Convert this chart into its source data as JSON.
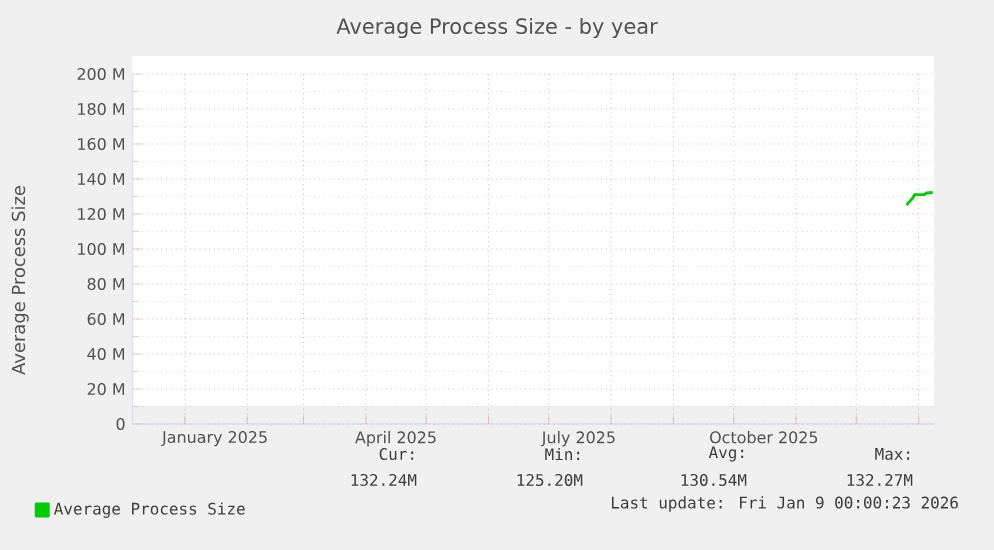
{
  "chart_data": {
    "type": "line",
    "title": "Average Process Size - by year",
    "ylabel": "Average Process Size",
    "x": [
      "2025-12-26",
      "2025-12-27",
      "2025-12-29",
      "2025-12-30",
      "2026-01-04",
      "2026-01-05",
      "2026-01-08"
    ],
    "series": [
      {
        "name": "Average Process Size",
        "color": "#00cc00",
        "values": [
          125.2,
          126.5,
          129,
          131,
          131.2,
          132,
          132.24
        ]
      }
    ],
    "xlim": [
      "2024-12-06",
      "2026-01-09"
    ],
    "xticks": [
      {
        "value": "2025-01-01",
        "label": null
      },
      {
        "value": "2025-01-16",
        "label": "January 2025"
      },
      {
        "value": "2025-02-01",
        "label": null
      },
      {
        "value": "2025-03-01",
        "label": null
      },
      {
        "value": "2025-04-01",
        "label": null
      },
      {
        "value": "2025-04-16",
        "label": "April 2025"
      },
      {
        "value": "2025-05-01",
        "label": null
      },
      {
        "value": "2025-06-01",
        "label": null
      },
      {
        "value": "2025-07-01",
        "label": null
      },
      {
        "value": "2025-07-16",
        "label": "July 2025"
      },
      {
        "value": "2025-08-01",
        "label": null
      },
      {
        "value": "2025-09-01",
        "label": null
      },
      {
        "value": "2025-10-01",
        "label": null
      },
      {
        "value": "2025-10-16",
        "label": "October 2025"
      },
      {
        "value": "2025-11-01",
        "label": null
      },
      {
        "value": "2025-12-01",
        "label": null
      },
      {
        "value": "2026-01-01",
        "label": null
      }
    ],
    "ylim": [
      0,
      200
    ],
    "yticks": [
      0,
      {
        "value": 20,
        "label": "20 M"
      },
      {
        "value": 40,
        "label": "40 M"
      },
      {
        "value": 60,
        "label": "60 M"
      },
      {
        "value": 80,
        "label": "80 M"
      },
      {
        "value": 100,
        "label": "100 M"
      },
      {
        "value": 120,
        "label": "120 M"
      },
      {
        "value": 140,
        "label": "140 M"
      },
      {
        "value": 160,
        "label": "160 M"
      },
      {
        "value": 180,
        "label": "180 M"
      },
      {
        "value": 200,
        "label": "200 M"
      }
    ],
    "grid": true,
    "legend": "bottom left",
    "marker": "none",
    "line_style": "solid",
    "annotations": [
      "Cur:",
      "132.24M",
      "Min:",
      "125.20M",
      "Avg:",
      "130.54M",
      "Max:",
      "132.27M",
      "Last update: Fri Jan  9 00:00:23 2026"
    ]
  }
}
